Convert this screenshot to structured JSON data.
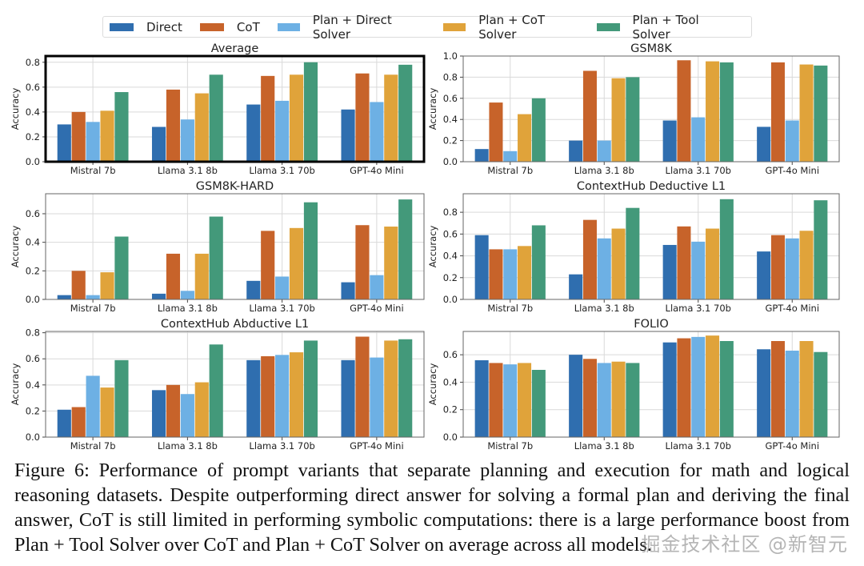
{
  "legend": {
    "items": [
      {
        "label": "Direct",
        "color": "#2f6eaf"
      },
      {
        "label": "CoT",
        "color": "#c7632a"
      },
      {
        "label": "Plan + Direct Solver",
        "color": "#6db0e4"
      },
      {
        "label": "Plan + CoT Solver",
        "color": "#e0a33a"
      },
      {
        "label": "Plan + Tool Solver",
        "color": "#43997a"
      }
    ]
  },
  "chart_data": [
    {
      "type": "bar",
      "title": "Average",
      "highlighted": true,
      "ylabel": "Accuracy",
      "xlabel": "",
      "ylim": [
        0,
        0.85
      ],
      "yticks": [
        "0.0",
        "0.2",
        "0.4",
        "0.6",
        "0.8"
      ],
      "grid": true,
      "categories": [
        "Mistral 7b",
        "Llama 3.1 8b",
        "Llama 3.1 70b",
        "GPT-4o Mini"
      ],
      "series": [
        {
          "name": "Direct",
          "values": [
            0.3,
            0.28,
            0.46,
            0.42
          ]
        },
        {
          "name": "CoT",
          "values": [
            0.4,
            0.58,
            0.69,
            0.71
          ]
        },
        {
          "name": "Plan + Direct Solver",
          "values": [
            0.32,
            0.34,
            0.49,
            0.48
          ]
        },
        {
          "name": "Plan + CoT Solver",
          "values": [
            0.41,
            0.55,
            0.7,
            0.7
          ]
        },
        {
          "name": "Plan + Tool Solver",
          "values": [
            0.56,
            0.7,
            0.8,
            0.78
          ]
        }
      ]
    },
    {
      "type": "bar",
      "title": "GSM8K",
      "highlighted": false,
      "ylabel": "Accuracy",
      "xlabel": "",
      "ylim": [
        0,
        1.0
      ],
      "yticks": [
        "0.0",
        "0.2",
        "0.4",
        "0.6",
        "0.8",
        "1.0"
      ],
      "grid": true,
      "categories": [
        "Mistral 7b",
        "Llama 3.1 8b",
        "Llama 3.1 70b",
        "GPT-4o Mini"
      ],
      "series": [
        {
          "name": "Direct",
          "values": [
            0.12,
            0.2,
            0.39,
            0.33
          ]
        },
        {
          "name": "CoT",
          "values": [
            0.56,
            0.86,
            0.96,
            0.94
          ]
        },
        {
          "name": "Plan + Direct Solver",
          "values": [
            0.1,
            0.2,
            0.42,
            0.39
          ]
        },
        {
          "name": "Plan + CoT Solver",
          "values": [
            0.45,
            0.79,
            0.95,
            0.92
          ]
        },
        {
          "name": "Plan + Tool Solver",
          "values": [
            0.6,
            0.8,
            0.94,
            0.91
          ]
        }
      ]
    },
    {
      "type": "bar",
      "title": "GSM8K-HARD",
      "highlighted": false,
      "ylabel": "Accuracy",
      "xlabel": "",
      "ylim": [
        0,
        0.74
      ],
      "yticks": [
        "0.0",
        "0.2",
        "0.4",
        "0.6"
      ],
      "grid": true,
      "categories": [
        "Mistral 7b",
        "Llama 3.1 8b",
        "Llama 3.1 70b",
        "GPT-4o Mini"
      ],
      "series": [
        {
          "name": "Direct",
          "values": [
            0.03,
            0.04,
            0.13,
            0.12
          ]
        },
        {
          "name": "CoT",
          "values": [
            0.2,
            0.32,
            0.48,
            0.52
          ]
        },
        {
          "name": "Plan + Direct Solver",
          "values": [
            0.03,
            0.06,
            0.16,
            0.17
          ]
        },
        {
          "name": "Plan + CoT Solver",
          "values": [
            0.19,
            0.32,
            0.5,
            0.51
          ]
        },
        {
          "name": "Plan + Tool Solver",
          "values": [
            0.44,
            0.58,
            0.68,
            0.7
          ]
        }
      ]
    },
    {
      "type": "bar",
      "title": "ContextHub Deductive L1",
      "highlighted": false,
      "ylabel": "Accuracy",
      "xlabel": "",
      "ylim": [
        0,
        0.97
      ],
      "yticks": [
        "0.0",
        "0.2",
        "0.4",
        "0.6",
        "0.8"
      ],
      "grid": true,
      "categories": [
        "Mistral 7b",
        "Llama 3.1 8b",
        "Llama 3.1 70b",
        "GPT-4o Mini"
      ],
      "series": [
        {
          "name": "Direct",
          "values": [
            0.59,
            0.23,
            0.5,
            0.44
          ]
        },
        {
          "name": "CoT",
          "values": [
            0.46,
            0.73,
            0.67,
            0.59
          ]
        },
        {
          "name": "Plan + Direct Solver",
          "values": [
            0.46,
            0.56,
            0.53,
            0.56
          ]
        },
        {
          "name": "Plan + CoT Solver",
          "values": [
            0.49,
            0.65,
            0.65,
            0.63
          ]
        },
        {
          "name": "Plan + Tool Solver",
          "values": [
            0.68,
            0.84,
            0.92,
            0.91
          ]
        }
      ]
    },
    {
      "type": "bar",
      "title": "ContextHub Abductive L1",
      "highlighted": false,
      "ylabel": "Accuracy",
      "xlabel": "",
      "ylim": [
        0,
        0.81
      ],
      "yticks": [
        "0.0",
        "0.2",
        "0.4",
        "0.6",
        "0.8"
      ],
      "grid": true,
      "categories": [
        "Mistral 7b",
        "Llama 3.1 8b",
        "Llama 3.1 70b",
        "GPT-4o Mini"
      ],
      "series": [
        {
          "name": "Direct",
          "values": [
            0.21,
            0.36,
            0.59,
            0.59
          ]
        },
        {
          "name": "CoT",
          "values": [
            0.23,
            0.4,
            0.62,
            0.77
          ]
        },
        {
          "name": "Plan + Direct Solver",
          "values": [
            0.47,
            0.33,
            0.63,
            0.61
          ]
        },
        {
          "name": "Plan + CoT Solver",
          "values": [
            0.38,
            0.42,
            0.65,
            0.74
          ]
        },
        {
          "name": "Plan + Tool Solver",
          "values": [
            0.59,
            0.71,
            0.74,
            0.75
          ]
        }
      ]
    },
    {
      "type": "bar",
      "title": "FOLIO",
      "highlighted": false,
      "ylabel": "Accuracy",
      "xlabel": "",
      "ylim": [
        0,
        0.77
      ],
      "yticks": [
        "0.0",
        "0.2",
        "0.4",
        "0.6"
      ],
      "grid": true,
      "categories": [
        "Mistral 7b",
        "Llama 3.1 8b",
        "Llama 3.1 70b",
        "GPT-4o Mini"
      ],
      "series": [
        {
          "name": "Direct",
          "values": [
            0.56,
            0.6,
            0.69,
            0.64
          ]
        },
        {
          "name": "CoT",
          "values": [
            0.54,
            0.57,
            0.72,
            0.7
          ]
        },
        {
          "name": "Plan + Direct Solver",
          "values": [
            0.53,
            0.54,
            0.73,
            0.63
          ]
        },
        {
          "name": "Plan + CoT Solver",
          "values": [
            0.54,
            0.55,
            0.74,
            0.7
          ]
        },
        {
          "name": "Plan + Tool Solver",
          "values": [
            0.49,
            0.54,
            0.7,
            0.62
          ]
        }
      ]
    }
  ],
  "caption": {
    "text": "Figure 6: Performance of prompt variants that separate planning and execution for math and logical reasoning datasets. Despite outperforming direct answer for solving a formal plan and deriving the final answer, CoT is still limited in performing symbolic computations: there is a large performance boost from Plan + Tool Solver over CoT and Plan + CoT Solver on average across all models."
  },
  "watermark": {
    "text": "掘金技术社区 @新智元"
  }
}
